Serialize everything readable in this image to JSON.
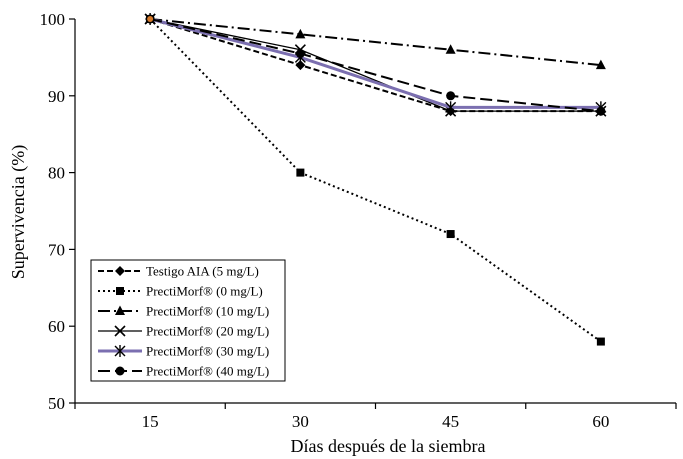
{
  "chart_data": {
    "type": "line",
    "title": "",
    "xlabel": "Días después de la siembra",
    "ylabel": "Supervivencia (%)",
    "x": [
      15,
      30,
      45,
      60
    ],
    "xticks": [
      "15",
      "30",
      "45",
      "60"
    ],
    "ylim": [
      50,
      100
    ],
    "yticks": [
      "50",
      "60",
      "70",
      "80",
      "90",
      "100"
    ],
    "grid": false,
    "legend_position": "bottom-left",
    "series": [
      {
        "name": "Testigo AIA (5 mg/L)",
        "values": [
          100,
          94,
          88,
          88
        ],
        "color": "#000000",
        "dash": "6,3",
        "marker": "diamond"
      },
      {
        "name": "PrectiMorf® (0 mg/L)",
        "values": [
          100,
          80,
          72,
          58
        ],
        "color": "#000000",
        "dash": "2,3",
        "marker": "square"
      },
      {
        "name": "PrectiMorf® (10 mg/L)",
        "values": [
          100,
          98,
          96,
          94
        ],
        "color": "#000000",
        "dash": "12,4,2,4",
        "marker": "triangle"
      },
      {
        "name": "PrectiMorf® (20 mg/L)",
        "values": [
          100,
          96,
          88,
          88
        ],
        "color": "#000000",
        "dash": "",
        "marker": "x"
      },
      {
        "name": "PrectiMorf® (30 mg/L)",
        "values": [
          100,
          95,
          88.5,
          88.5
        ],
        "color": "#7b6fb0",
        "dash": "",
        "marker": "star"
      },
      {
        "name": "PrectiMorf® (40 mg/L)",
        "values": [
          100,
          95.5,
          90,
          88
        ],
        "color": "#000000",
        "dash": "12,5",
        "marker": "circle"
      }
    ]
  }
}
